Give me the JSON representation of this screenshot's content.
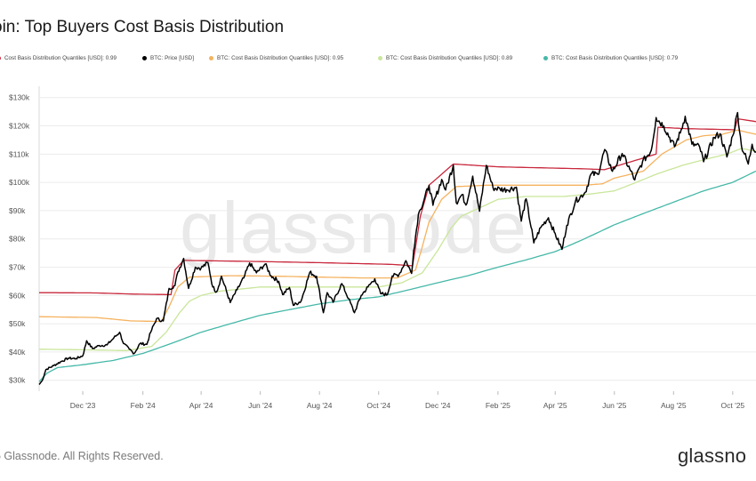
{
  "header": {
    "title": "oin: Top Buyers Cost Basis Distribution"
  },
  "legend": [
    {
      "label": " Cost Basis Distribution Quantiles [USD]: 0.99",
      "color": "#c8283c"
    },
    {
      "label": "BTC: Price [USD]",
      "color": "#000000"
    },
    {
      "label": "BTC: Cost Basis Distribution Quantiles [USD]: 0.95",
      "color": "#f5b25f"
    },
    {
      "label": "BTC: Cost Basis Distribution Quantiles [USD]: 0.89",
      "color": "#c9e69a"
    },
    {
      "label": "BTC: Cost Basis Distribution Quantiles [USD]: 0.79",
      "color": "#45b8a8"
    }
  ],
  "watermark": "glassnode",
  "footer": {
    "copyright": "5 Glassnode. All Rights Reserved.",
    "brand": "glassno"
  },
  "chart_data": {
    "type": "line",
    "title": "oin: Top Buyers Cost Basis Distribution",
    "xlabel": "",
    "ylabel": "",
    "x_range": [
      "2023-10-17",
      "2025-10-25"
    ],
    "x_ticks": [
      {
        "date": "2023-12-01",
        "label": "Dec '23"
      },
      {
        "date": "2024-02-01",
        "label": "Feb '24"
      },
      {
        "date": "2024-04-01",
        "label": "Apr '24"
      },
      {
        "date": "2024-06-01",
        "label": "Jun '24"
      },
      {
        "date": "2024-08-01",
        "label": "Aug '24"
      },
      {
        "date": "2024-10-01",
        "label": "Oct '24"
      },
      {
        "date": "2024-12-01",
        "label": "Dec '24"
      },
      {
        "date": "2025-02-01",
        "label": "Feb '25"
      },
      {
        "date": "2025-04-01",
        "label": "Apr '25"
      },
      {
        "date": "2025-06-01",
        "label": "Jun '25"
      },
      {
        "date": "2025-08-01",
        "label": "Aug '25"
      },
      {
        "date": "2025-10-01",
        "label": "Oct '25"
      }
    ],
    "y_ticks": [
      {
        "value": 30000,
        "label": "$30k"
      },
      {
        "value": 40000,
        "label": "$40k"
      },
      {
        "value": 50000,
        "label": "$50k"
      },
      {
        "value": 60000,
        "label": "$60k"
      },
      {
        "value": 70000,
        "label": "$70k"
      },
      {
        "value": 80000,
        "label": "$80k"
      },
      {
        "value": 90000,
        "label": "$90k"
      },
      {
        "value": 100000,
        "label": "$100k"
      },
      {
        "value": 110000,
        "label": "$110k"
      },
      {
        "value": 120000,
        "label": "$120k"
      },
      {
        "value": 130000,
        "label": "$130k"
      }
    ],
    "ylim": [
      23000,
      134000
    ],
    "grid": true,
    "legend_position": "top",
    "series": [
      {
        "name": " Cost Basis Distribution Quantiles [USD]: 0.99",
        "color": "#c8283c",
        "points": [
          [
            "2023-10-17",
            61000
          ],
          [
            "2023-12-15",
            60900
          ],
          [
            "2024-01-20",
            60500
          ],
          [
            "2024-03-01",
            60300
          ],
          [
            "2024-03-05",
            69000
          ],
          [
            "2024-03-14",
            72400
          ],
          [
            "2024-06-01",
            72000
          ],
          [
            "2024-08-01",
            71600
          ],
          [
            "2024-10-15",
            71000
          ],
          [
            "2024-11-05",
            70500
          ],
          [
            "2024-11-08",
            77000
          ],
          [
            "2024-11-13",
            88000
          ],
          [
            "2024-11-22",
            99000
          ],
          [
            "2024-12-17",
            106500
          ],
          [
            "2025-02-01",
            105500
          ],
          [
            "2025-05-01",
            104800
          ],
          [
            "2025-05-22",
            104500
          ],
          [
            "2025-07-14",
            110000
          ],
          [
            "2025-07-16",
            119500
          ],
          [
            "2025-08-14",
            119000
          ],
          [
            "2025-09-10",
            118800
          ],
          [
            "2025-10-03",
            118600
          ],
          [
            "2025-10-06",
            122500
          ],
          [
            "2025-10-25",
            121500
          ]
        ]
      },
      {
        "name": "BTC: Cost Basis Distribution Quantiles [USD]: 0.95",
        "color": "#f5b25f",
        "points": [
          [
            "2023-10-17",
            52500
          ],
          [
            "2023-12-15",
            52200
          ],
          [
            "2024-01-20",
            51000
          ],
          [
            "2024-02-20",
            50800
          ],
          [
            "2024-02-28",
            56000
          ],
          [
            "2024-03-08",
            63000
          ],
          [
            "2024-03-20",
            66500
          ],
          [
            "2024-05-01",
            67000
          ],
          [
            "2024-06-20",
            66800
          ],
          [
            "2024-08-01",
            66500
          ],
          [
            "2024-09-15",
            66200
          ],
          [
            "2024-10-20",
            66200
          ],
          [
            "2024-11-08",
            69000
          ],
          [
            "2024-11-14",
            76000
          ],
          [
            "2024-11-22",
            86000
          ],
          [
            "2024-12-05",
            94000
          ],
          [
            "2024-12-20",
            98500
          ],
          [
            "2025-01-20",
            99000
          ],
          [
            "2025-03-01",
            99000
          ],
          [
            "2025-05-01",
            99000
          ],
          [
            "2025-05-20",
            99500
          ],
          [
            "2025-06-01",
            101500
          ],
          [
            "2025-07-01",
            104000
          ],
          [
            "2025-07-20",
            110000
          ],
          [
            "2025-08-14",
            115000
          ],
          [
            "2025-09-01",
            116500
          ],
          [
            "2025-09-20",
            117000
          ],
          [
            "2025-10-06",
            118500
          ],
          [
            "2025-10-25",
            117000
          ]
        ]
      },
      {
        "name": "BTC: Cost Basis Distribution Quantiles [USD]: 0.89",
        "color": "#c9e69a",
        "points": [
          [
            "2023-10-17",
            41000
          ],
          [
            "2023-12-01",
            40800
          ],
          [
            "2024-01-15",
            40500
          ],
          [
            "2024-02-10",
            42000
          ],
          [
            "2024-02-25",
            47000
          ],
          [
            "2024-03-10",
            54000
          ],
          [
            "2024-03-20",
            58000
          ],
          [
            "2024-04-01",
            60000
          ],
          [
            "2024-04-20",
            61500
          ],
          [
            "2024-06-01",
            63000
          ],
          [
            "2024-07-15",
            63000
          ],
          [
            "2024-08-20",
            63000
          ],
          [
            "2024-10-01",
            63000
          ],
          [
            "2024-10-25",
            64500
          ],
          [
            "2024-11-15",
            68000
          ],
          [
            "2024-12-01",
            76000
          ],
          [
            "2024-12-15",
            84000
          ],
          [
            "2024-12-25",
            88000
          ],
          [
            "2025-01-10",
            90500
          ],
          [
            "2025-02-01",
            94000
          ],
          [
            "2025-03-01",
            95000
          ],
          [
            "2025-04-10",
            95000
          ],
          [
            "2025-05-10",
            96000
          ],
          [
            "2025-06-01",
            97000
          ],
          [
            "2025-06-20",
            99500
          ],
          [
            "2025-07-15",
            103000
          ],
          [
            "2025-08-10",
            106000
          ],
          [
            "2025-09-01",
            108000
          ],
          [
            "2025-09-25",
            110000
          ],
          [
            "2025-10-10",
            112000
          ],
          [
            "2025-10-25",
            111000
          ]
        ]
      },
      {
        "name": "BTC: Cost Basis Distribution Quantiles [USD]: 0.79",
        "color": "#45b8a8",
        "points": [
          [
            "2023-10-17",
            29500
          ],
          [
            "2023-10-25",
            32500
          ],
          [
            "2023-11-05",
            34500
          ],
          [
            "2023-12-01",
            35500
          ],
          [
            "2024-01-01",
            37000
          ],
          [
            "2024-02-01",
            39500
          ],
          [
            "2024-03-01",
            43000
          ],
          [
            "2024-04-01",
            47000
          ],
          [
            "2024-05-01",
            50000
          ],
          [
            "2024-06-01",
            53000
          ],
          [
            "2024-07-01",
            55000
          ],
          [
            "2024-08-01",
            57000
          ],
          [
            "2024-09-01",
            58500
          ],
          [
            "2024-10-01",
            59500
          ],
          [
            "2024-11-01",
            62000
          ],
          [
            "2024-12-01",
            64500
          ],
          [
            "2025-01-01",
            67000
          ],
          [
            "2025-02-01",
            70000
          ],
          [
            "2025-03-01",
            72500
          ],
          [
            "2025-04-01",
            75500
          ],
          [
            "2025-05-01",
            80000
          ],
          [
            "2025-06-01",
            85000
          ],
          [
            "2025-07-01",
            89000
          ],
          [
            "2025-08-01",
            93000
          ],
          [
            "2025-09-01",
            97000
          ],
          [
            "2025-10-01",
            100000
          ],
          [
            "2025-10-25",
            104000
          ]
        ]
      },
      {
        "name": "BTC: Price [USD]",
        "color": "#000000",
        "points": [
          [
            "2023-10-17",
            28500
          ],
          [
            "2023-10-20",
            29800
          ],
          [
            "2023-10-24",
            33800
          ],
          [
            "2023-11-01",
            35200
          ],
          [
            "2023-11-09",
            36700
          ],
          [
            "2023-11-16",
            37800
          ],
          [
            "2023-11-24",
            37700
          ],
          [
            "2023-12-01",
            38700
          ],
          [
            "2023-12-05",
            44000
          ],
          [
            "2023-12-11",
            41200
          ],
          [
            "2023-12-18",
            42300
          ],
          [
            "2023-12-26",
            42500
          ],
          [
            "2024-01-02",
            45000
          ],
          [
            "2024-01-08",
            47000
          ],
          [
            "2024-01-12",
            43000
          ],
          [
            "2024-01-18",
            41000
          ],
          [
            "2024-01-23",
            39500
          ],
          [
            "2024-01-29",
            43000
          ],
          [
            "2024-02-05",
            42700
          ],
          [
            "2024-02-09",
            47000
          ],
          [
            "2024-02-15",
            51800
          ],
          [
            "2024-02-22",
            51000
          ],
          [
            "2024-02-28",
            62500
          ],
          [
            "2024-03-05",
            63500
          ],
          [
            "2024-03-08",
            68300
          ],
          [
            "2024-03-14",
            73100
          ],
          [
            "2024-03-19",
            62500
          ],
          [
            "2024-03-26",
            70000
          ],
          [
            "2024-04-01",
            69700
          ],
          [
            "2024-04-08",
            71600
          ],
          [
            "2024-04-13",
            63000
          ],
          [
            "2024-04-17",
            61300
          ],
          [
            "2024-04-22",
            66800
          ],
          [
            "2024-05-01",
            57500
          ],
          [
            "2024-05-08",
            62000
          ],
          [
            "2024-05-15",
            66200
          ],
          [
            "2024-05-21",
            71500
          ],
          [
            "2024-05-28",
            68000
          ],
          [
            "2024-06-06",
            71100
          ],
          [
            "2024-06-12",
            67000
          ],
          [
            "2024-06-20",
            65000
          ],
          [
            "2024-06-24",
            60300
          ],
          [
            "2024-07-01",
            62800
          ],
          [
            "2024-07-05",
            56500
          ],
          [
            "2024-07-13",
            58000
          ],
          [
            "2024-07-22",
            68200
          ],
          [
            "2024-07-29",
            66800
          ],
          [
            "2024-08-05",
            53900
          ],
          [
            "2024-08-09",
            61000
          ],
          [
            "2024-08-15",
            57600
          ],
          [
            "2024-08-24",
            64200
          ],
          [
            "2024-08-31",
            58900
          ],
          [
            "2024-09-06",
            53900
          ],
          [
            "2024-09-13",
            60000
          ],
          [
            "2024-09-20",
            63000
          ],
          [
            "2024-09-27",
            65900
          ],
          [
            "2024-10-03",
            60700
          ],
          [
            "2024-10-10",
            60300
          ],
          [
            "2024-10-15",
            66900
          ],
          [
            "2024-10-22",
            67400
          ],
          [
            "2024-10-29",
            72300
          ],
          [
            "2024-11-04",
            67800
          ],
          [
            "2024-11-06",
            75600
          ],
          [
            "2024-11-11",
            88700
          ],
          [
            "2024-11-13",
            90400
          ],
          [
            "2024-11-22",
            98900
          ],
          [
            "2024-11-26",
            91900
          ],
          [
            "2024-12-05",
            101000
          ],
          [
            "2024-12-09",
            97300
          ],
          [
            "2024-12-17",
            106100
          ],
          [
            "2024-12-20",
            92800
          ],
          [
            "2024-12-26",
            95700
          ],
          [
            "2024-12-30",
            92000
          ],
          [
            "2025-01-06",
            102200
          ],
          [
            "2025-01-13",
            89800
          ],
          [
            "2025-01-20",
            106000
          ],
          [
            "2025-01-27",
            98000
          ],
          [
            "2025-02-03",
            97700
          ],
          [
            "2025-02-10",
            97400
          ],
          [
            "2025-02-20",
            98300
          ],
          [
            "2025-02-25",
            86300
          ],
          [
            "2025-03-02",
            94200
          ],
          [
            "2025-03-10",
            78600
          ],
          [
            "2025-03-17",
            84000
          ],
          [
            "2025-03-25",
            87500
          ],
          [
            "2025-03-31",
            82500
          ],
          [
            "2025-04-08",
            76300
          ],
          [
            "2025-04-13",
            84800
          ],
          [
            "2025-04-22",
            93400
          ],
          [
            "2025-05-02",
            96500
          ],
          [
            "2025-05-08",
            103000
          ],
          [
            "2025-05-15",
            102800
          ],
          [
            "2025-05-22",
            111600
          ],
          [
            "2025-05-30",
            103900
          ],
          [
            "2025-06-09",
            110200
          ],
          [
            "2025-06-17",
            104600
          ],
          [
            "2025-06-22",
            100900
          ],
          [
            "2025-06-30",
            107300
          ],
          [
            "2025-07-09",
            111300
          ],
          [
            "2025-07-14",
            122900
          ],
          [
            "2025-07-22",
            119900
          ],
          [
            "2025-08-02",
            112600
          ],
          [
            "2025-08-08",
            117500
          ],
          [
            "2025-08-13",
            123400
          ],
          [
            "2025-08-20",
            113500
          ],
          [
            "2025-08-28",
            112500
          ],
          [
            "2025-09-01",
            107300
          ],
          [
            "2025-09-12",
            115900
          ],
          [
            "2025-09-18",
            117200
          ],
          [
            "2025-09-25",
            109000
          ],
          [
            "2025-10-01",
            116500
          ],
          [
            "2025-10-06",
            124700
          ],
          [
            "2025-10-10",
            113000
          ],
          [
            "2025-10-17",
            106500
          ],
          [
            "2025-10-21",
            113500
          ],
          [
            "2025-10-25",
            110800
          ]
        ]
      }
    ]
  }
}
